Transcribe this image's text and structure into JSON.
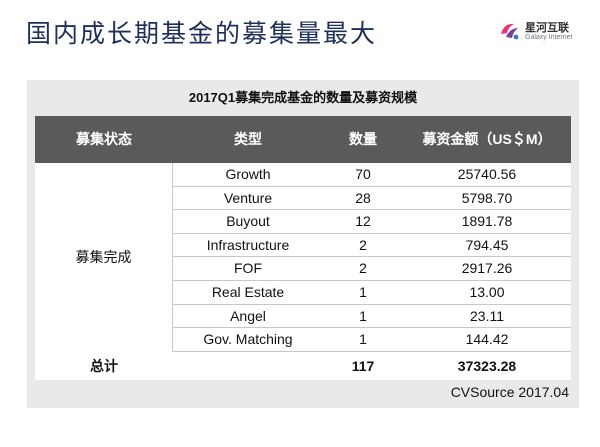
{
  "slide": {
    "title": "国内成长期基金的募集量最大"
  },
  "logo": {
    "name": "星河互联",
    "sub": "Galaxy Internet",
    "colors": [
      "#e8336d",
      "#7b3fa0",
      "#2f7dd0"
    ]
  },
  "table": {
    "title": "2017Q1募集完成基金的数量及募资规模",
    "headers": {
      "status": "募集状态",
      "type": "类型",
      "count": "数量",
      "amount": "募资金额（US＄M）"
    },
    "status_label": "募集完成",
    "rows": [
      {
        "type": "Growth",
        "count": "70",
        "amount": "25740.56"
      },
      {
        "type": "Venture",
        "count": "28",
        "amount": "5798.70"
      },
      {
        "type": "Buyout",
        "count": "12",
        "amount": "1891.78"
      },
      {
        "type": "Infrastructure",
        "count": "2",
        "amount": "794.45"
      },
      {
        "type": "FOF",
        "count": "2",
        "amount": "2917.26"
      },
      {
        "type": "Real Estate",
        "count": "1",
        "amount": "13.00"
      },
      {
        "type": "Angel",
        "count": "1",
        "amount": "23.11"
      },
      {
        "type": "Gov. Matching",
        "count": "1",
        "amount": "144.42"
      }
    ],
    "total": {
      "label": "总计",
      "count": "117",
      "amount": "37323.28"
    },
    "source": "CVSource 2017.04"
  }
}
